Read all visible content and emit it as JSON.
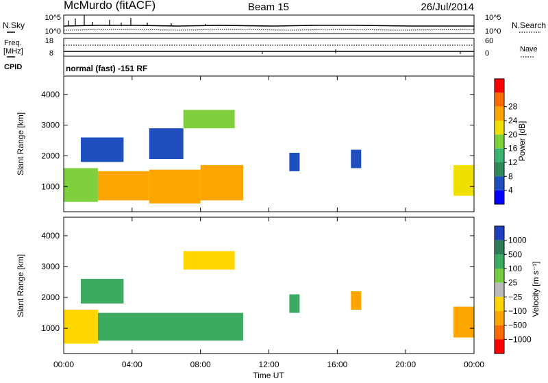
{
  "header": {
    "station": "McMurdo (fitACF)",
    "beam": "Beam 15",
    "date": "26/Jul/2014"
  },
  "top_panels": {
    "nsky_label": "N.Sky",
    "nsky_ticks": [
      "10^5",
      "10^0"
    ],
    "nsearch_label": "N.Search",
    "nsearch_ticks": [
      "10^5",
      "10^0"
    ],
    "freq_label": "Freq.",
    "freq_unit": "[MHz]",
    "freq_ticks": [
      "18",
      "8"
    ],
    "nave_label": "Nave",
    "nave_ticks": [
      "60",
      "0"
    ],
    "cpid_label": "CPID",
    "cpid_value": "normal (fast) -151 RF"
  },
  "chart_data": [
    {
      "type": "heatmap",
      "name": "power",
      "xlabel": "Time UT",
      "ylabel": "Slant Range [km]",
      "xlim": [
        0,
        24
      ],
      "ylim": [
        180,
        4600
      ],
      "yticks": [
        "1000",
        "2000",
        "3000",
        "4000"
      ],
      "xticks": [
        "00:00",
        "04:00",
        "08:00",
        "12:00",
        "16:00",
        "20:00",
        "00:00"
      ],
      "colorbar": {
        "label": "Power [dB]",
        "ticks": [
          "4",
          "8",
          "12",
          "16",
          "20",
          "24",
          "28"
        ],
        "colors": [
          "#0000ff",
          "#1f4fbf",
          "#2e8b57",
          "#3cb371",
          "#7fd03c",
          "#f0e000",
          "#ffa500",
          "#ff6a00",
          "#ff0000"
        ]
      },
      "regions": [
        {
          "t": [
            0.0,
            2.0
          ],
          "r": [
            500,
            1600
          ],
          "value": 18
        },
        {
          "t": [
            2.0,
            5.0
          ],
          "r": [
            550,
            1500
          ],
          "value": 24
        },
        {
          "t": [
            5.0,
            8.0
          ],
          "r": [
            450,
            1550
          ],
          "value": 26
        },
        {
          "t": [
            8.0,
            10.5
          ],
          "r": [
            550,
            1700
          ],
          "value": 27
        },
        {
          "t": [
            1.0,
            3.5
          ],
          "r": [
            1800,
            2600
          ],
          "value": 6
        },
        {
          "t": [
            5.0,
            7.0
          ],
          "r": [
            1900,
            2900
          ],
          "value": 7
        },
        {
          "t": [
            7.0,
            10.0
          ],
          "r": [
            2900,
            3500
          ],
          "value": 18
        },
        {
          "t": [
            13.2,
            13.8
          ],
          "r": [
            1500,
            2100
          ],
          "value": 5
        },
        {
          "t": [
            16.8,
            17.4
          ],
          "r": [
            1600,
            2200
          ],
          "value": 6
        },
        {
          "t": [
            22.8,
            24.0
          ],
          "r": [
            700,
            1700
          ],
          "value": 22
        }
      ]
    },
    {
      "type": "heatmap",
      "name": "velocity",
      "xlabel": "Time UT",
      "ylabel": "Slant Range [km]",
      "xlim": [
        0,
        24
      ],
      "ylim": [
        180,
        4600
      ],
      "yticks": [
        "1000",
        "2000",
        "3000",
        "4000"
      ],
      "xticks": [
        "00:00",
        "04:00",
        "08:00",
        "12:00",
        "16:00",
        "20:00",
        "00:00"
      ],
      "colorbar": {
        "label": "Velocity [m s⁻¹]",
        "ticks": [
          "1000",
          "500",
          "100",
          "25",
          "−25",
          "−100",
          "−500",
          "−1000"
        ],
        "colors": [
          "#1f3fbf",
          "#2e7b57",
          "#3caa60",
          "#77cc44",
          "#bbbbbb",
          "#ffd700",
          "#ffa500",
          "#ff6a00",
          "#ff0000"
        ]
      },
      "regions": [
        {
          "t": [
            0.0,
            2.0
          ],
          "r": [
            500,
            1600
          ],
          "value": -50
        },
        {
          "t": [
            2.0,
            10.5
          ],
          "r": [
            600,
            1500
          ],
          "value": 300
        },
        {
          "t": [
            1.0,
            3.5
          ],
          "r": [
            1800,
            2600
          ],
          "value": 200
        },
        {
          "t": [
            7.0,
            10.0
          ],
          "r": [
            2900,
            3500
          ],
          "value": -30
        },
        {
          "t": [
            13.2,
            13.8
          ],
          "r": [
            1500,
            2100
          ],
          "value": 150
        },
        {
          "t": [
            16.8,
            17.4
          ],
          "r": [
            1600,
            2200
          ],
          "value": -150
        },
        {
          "t": [
            22.8,
            24.0
          ],
          "r": [
            700,
            1700
          ],
          "value": -300
        }
      ]
    }
  ]
}
